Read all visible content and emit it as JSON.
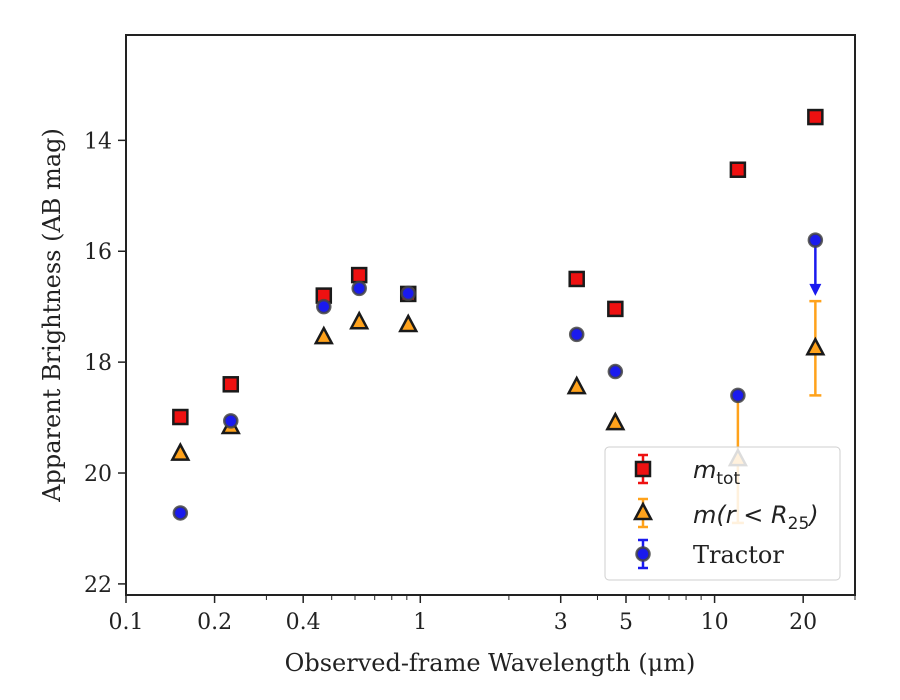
{
  "chart_data": {
    "type": "scatter",
    "title": "",
    "xlabel": "Observed-frame Wavelength (μm)",
    "ylabel": "Apparent Brightness (AB mag)",
    "xscale": "log",
    "xlim": [
      0.1,
      30
    ],
    "ylim": [
      22.2,
      12.1
    ],
    "y_inverted": true,
    "x_ticks": [
      {
        "value": 0.1,
        "label": "0.1"
      },
      {
        "value": 0.2,
        "label": "0.2"
      },
      {
        "value": 0.4,
        "label": "0.4"
      },
      {
        "value": 1,
        "label": "1"
      },
      {
        "value": 3,
        "label": "3"
      },
      {
        "value": 5,
        "label": "5"
      },
      {
        "value": 10,
        "label": "10"
      },
      {
        "value": 20,
        "label": "20"
      }
    ],
    "y_ticks": [
      {
        "value": 14,
        "label": "14"
      },
      {
        "value": 16,
        "label": "16"
      },
      {
        "value": 18,
        "label": "18"
      },
      {
        "value": 20,
        "label": "20"
      },
      {
        "value": 22,
        "label": "22"
      }
    ],
    "grid": false,
    "legend_position": "lower-right",
    "series": [
      {
        "name": "m_tot",
        "marker": "square",
        "color": "#ee1111",
        "points": [
          {
            "x": 0.153,
            "y": 18.99
          },
          {
            "x": 0.227,
            "y": 18.4
          },
          {
            "x": 0.47,
            "y": 16.8
          },
          {
            "x": 0.62,
            "y": 16.43
          },
          {
            "x": 0.91,
            "y": 16.77
          },
          {
            "x": 3.4,
            "y": 16.5
          },
          {
            "x": 4.6,
            "y": 17.04
          },
          {
            "x": 12.0,
            "y": 14.53
          },
          {
            "x": 22.0,
            "y": 13.58
          }
        ]
      },
      {
        "name": "m(r<R_25)",
        "marker": "triangle",
        "color": "#ffa21b",
        "points": [
          {
            "x": 0.153,
            "y": 19.65
          },
          {
            "x": 0.227,
            "y": 19.17
          },
          {
            "x": 0.47,
            "y": 17.55
          },
          {
            "x": 0.62,
            "y": 17.28
          },
          {
            "x": 0.91,
            "y": 17.33
          },
          {
            "x": 3.4,
            "y": 18.45
          },
          {
            "x": 4.6,
            "y": 19.1
          },
          {
            "x": 12.0,
            "y": 19.75,
            "err_low": 1.15,
            "err_high": 1.15
          },
          {
            "x": 22.0,
            "y": 17.75,
            "err_low": 0.85,
            "err_high": 0.85
          }
        ]
      },
      {
        "name": "Tractor",
        "marker": "circle",
        "color": "#1a1aee",
        "points": [
          {
            "x": 0.153,
            "y": 20.72
          },
          {
            "x": 0.227,
            "y": 19.06
          },
          {
            "x": 0.47,
            "y": 17.0
          },
          {
            "x": 0.62,
            "y": 16.67
          },
          {
            "x": 0.91,
            "y": 16.76
          },
          {
            "x": 3.4,
            "y": 17.5
          },
          {
            "x": 4.6,
            "y": 18.17
          },
          {
            "x": 12.0,
            "y": 18.6
          },
          {
            "x": 22.0,
            "y": 15.8,
            "upper_limit_arrow_to": 16.75
          }
        ]
      }
    ]
  }
}
